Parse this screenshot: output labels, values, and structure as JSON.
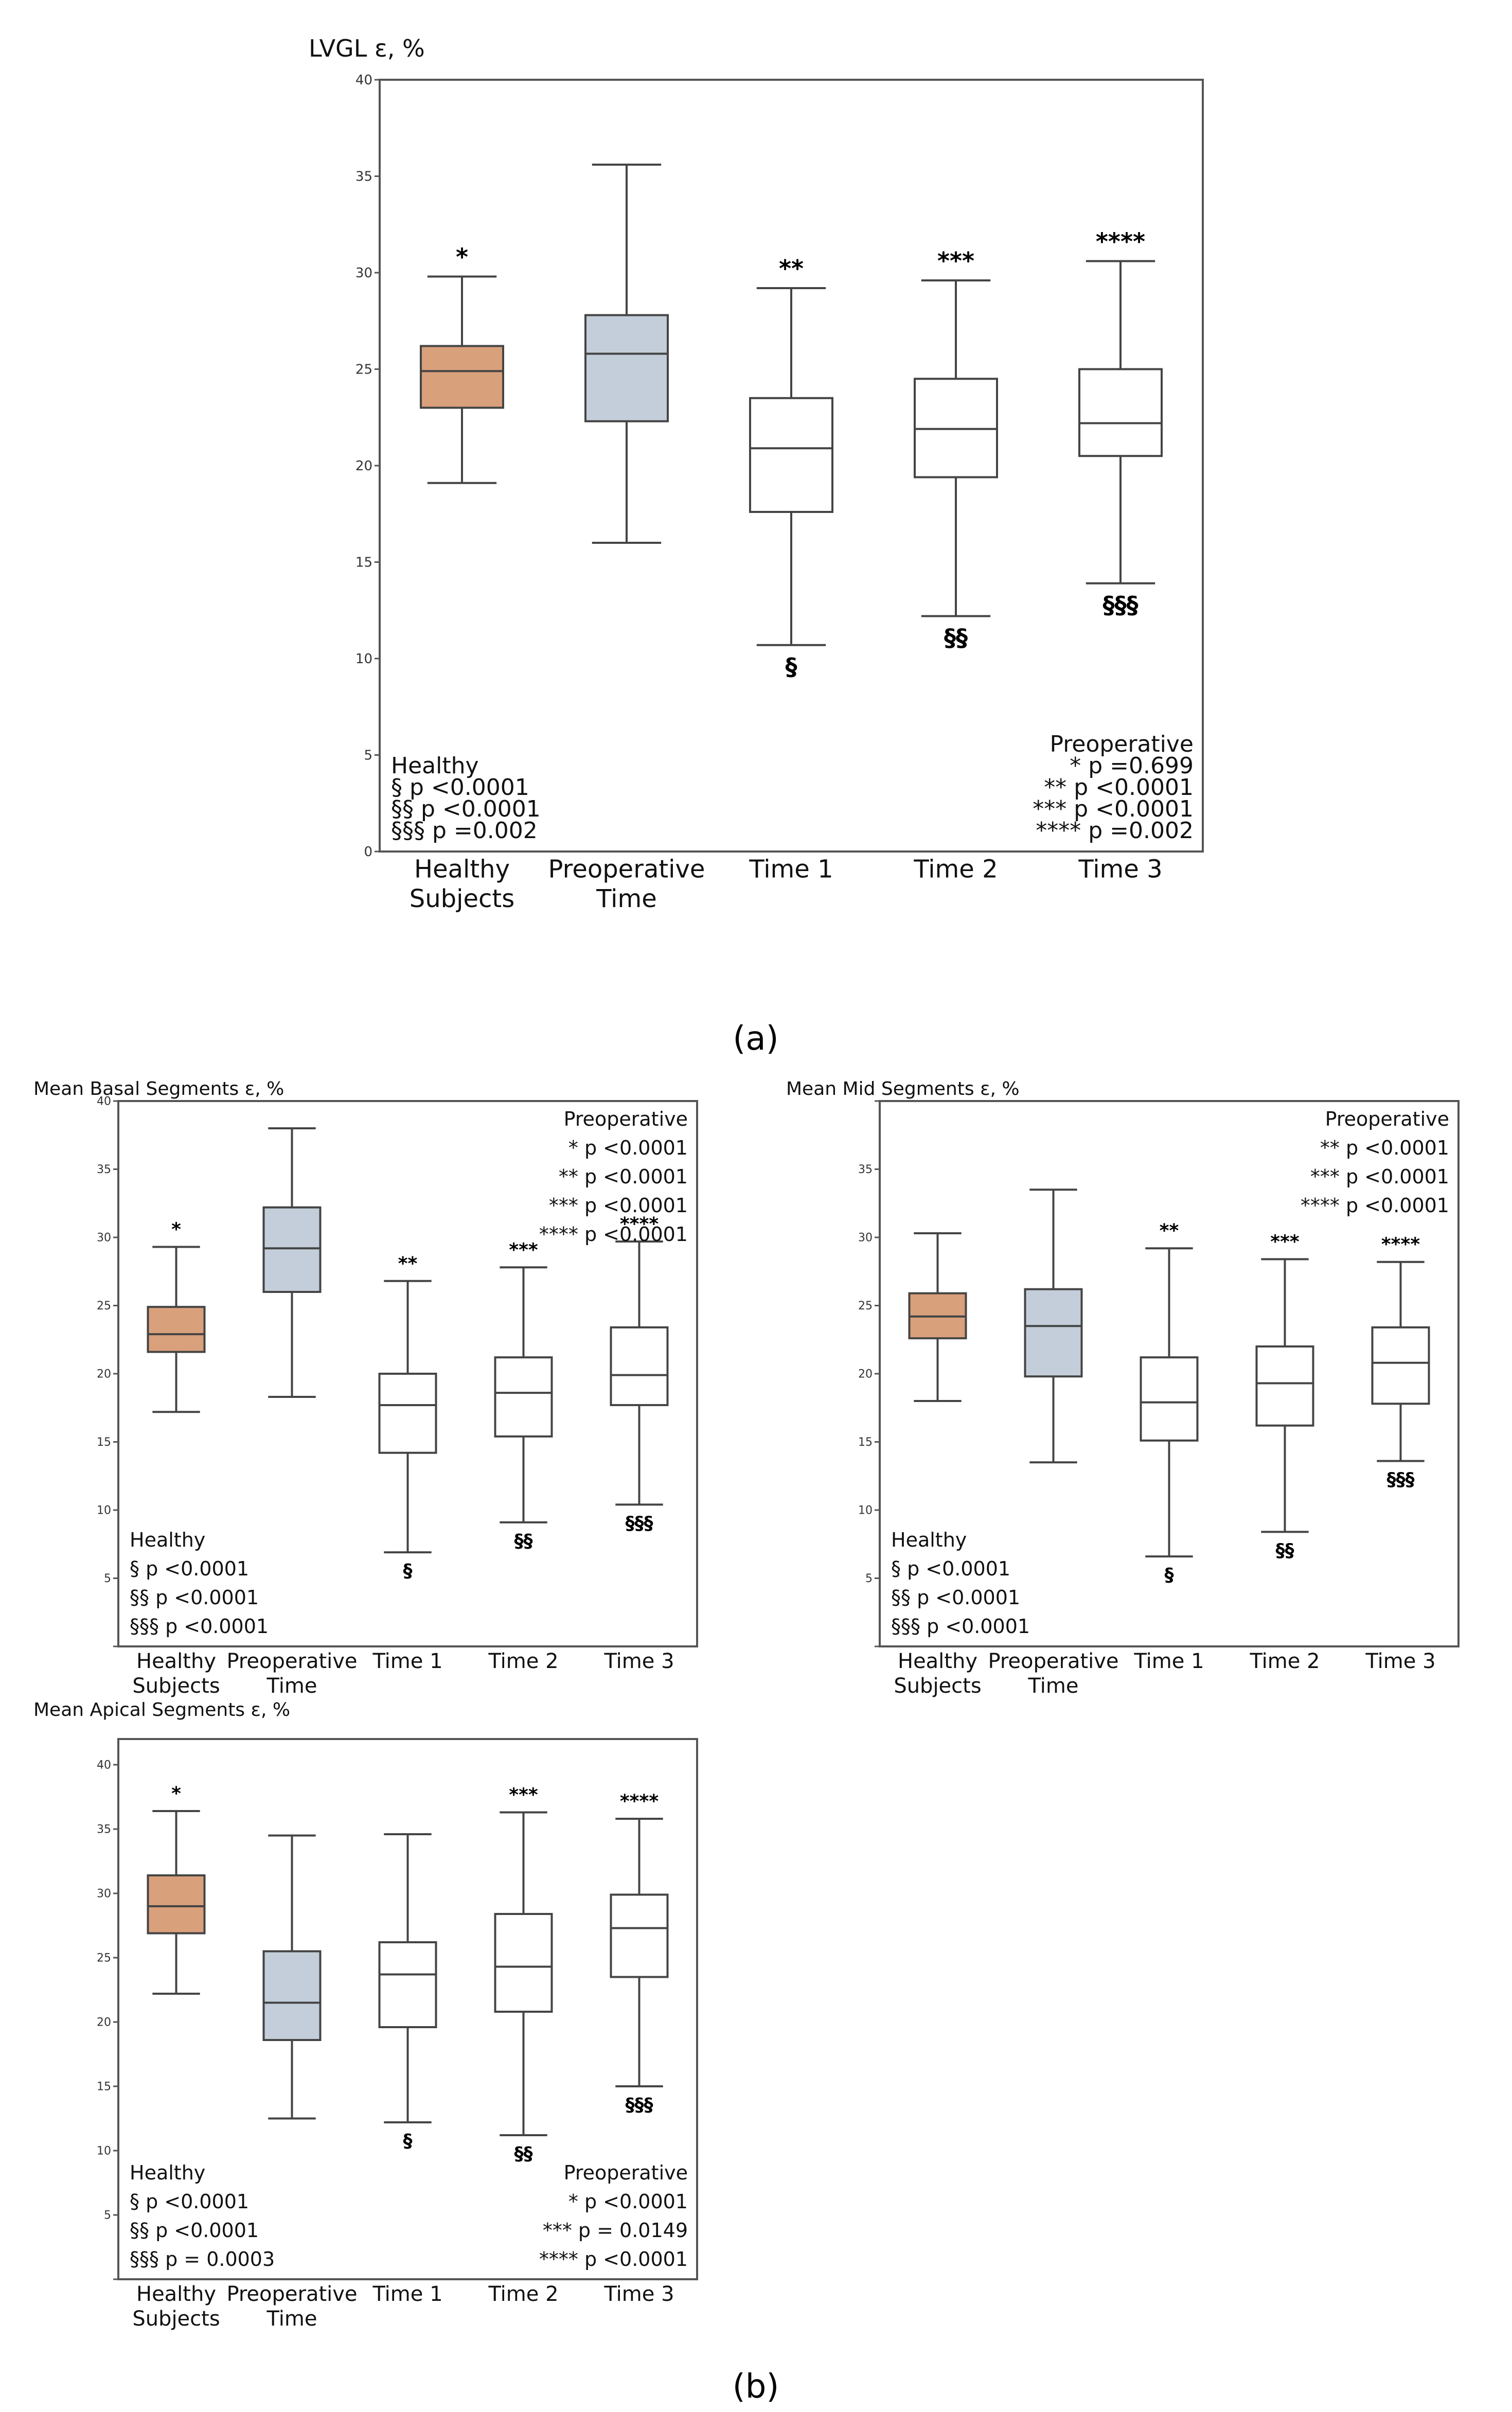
{
  "panel_labels": [
    "(a)",
    "(b)"
  ],
  "colors": {
    "healthy": "#D9A07C",
    "preoperative": "#C3CEDA",
    "postop": "#FFFFFF",
    "line": "#444444"
  },
  "chart_data": [
    {
      "id": "lvgl",
      "type": "box",
      "title": "LVGL ε, %",
      "ylim": [
        0,
        40
      ],
      "yticks": [
        "0",
        "5",
        "10",
        "15",
        "20",
        "25",
        "30",
        "35",
        "40"
      ],
      "categories": [
        [
          "Healthy",
          "Subjects"
        ],
        [
          "Preoperative",
          "Time"
        ],
        [
          "Time 1"
        ],
        [
          "Time 2"
        ],
        [
          "Time 3"
        ]
      ],
      "boxes": [
        {
          "min": 19.1,
          "q1": 23.0,
          "median": 24.9,
          "q3": 26.2,
          "max": 29.8,
          "top_mark": "*",
          "bottom_mark": ""
        },
        {
          "min": 16.0,
          "q1": 22.3,
          "median": 25.8,
          "q3": 27.8,
          "max": 35.6,
          "top_mark": "",
          "bottom_mark": ""
        },
        {
          "min": 10.7,
          "q1": 17.6,
          "median": 20.9,
          "q3": 23.5,
          "max": 29.2,
          "top_mark": "**",
          "bottom_mark": "§"
        },
        {
          "min": 12.2,
          "q1": 19.4,
          "median": 21.9,
          "q3": 24.5,
          "max": 29.6,
          "top_mark": "***",
          "bottom_mark": "§§"
        },
        {
          "min": 13.9,
          "q1": 20.5,
          "median": 22.2,
          "q3": 25.0,
          "max": 30.6,
          "top_mark": "****",
          "bottom_mark": "§§§"
        }
      ],
      "annotation_left": [
        "Healthy",
        "§ p <0.0001",
        "§§ p <0.0001",
        "§§§ p =0.002"
      ],
      "annotation_right": [
        "Preoperative",
        "* p =0.699",
        "** p <0.0001",
        "*** p <0.0001",
        "**** p =0.002"
      ]
    },
    {
      "id": "basal",
      "type": "box",
      "title": "Mean Basal Segments ε, %",
      "ylim": [
        0,
        40
      ],
      "yticks": [
        "",
        "5",
        "10",
        "15",
        "20",
        "25",
        "30",
        "35",
        "40"
      ],
      "categories": [
        [
          "Healthy",
          "Subjects"
        ],
        [
          "Preoperative",
          "Time"
        ],
        [
          "Time 1"
        ],
        [
          "Time 2"
        ],
        [
          "Time 3"
        ]
      ],
      "boxes": [
        {
          "min": 17.2,
          "q1": 21.6,
          "median": 22.9,
          "q3": 24.9,
          "max": 29.3,
          "top_mark": "*",
          "bottom_mark": ""
        },
        {
          "min": 18.3,
          "q1": 26.0,
          "median": 29.2,
          "q3": 32.2,
          "max": 38.0,
          "top_mark": "",
          "bottom_mark": ""
        },
        {
          "min": 6.9,
          "q1": 14.2,
          "median": 17.7,
          "q3": 20.0,
          "max": 26.8,
          "top_mark": "**",
          "bottom_mark": "§"
        },
        {
          "min": 9.1,
          "q1": 15.4,
          "median": 18.6,
          "q3": 21.2,
          "max": 27.8,
          "top_mark": "***",
          "bottom_mark": "§§"
        },
        {
          "min": 10.4,
          "q1": 17.7,
          "median": 19.9,
          "q3": 23.4,
          "max": 29.7,
          "top_mark": "****",
          "bottom_mark": "§§§"
        }
      ],
      "annotation_left": [
        "Healthy",
        "§ p <0.0001",
        "§§ p <0.0001",
        "§§§ p <0.0001"
      ],
      "annotation_right": [
        "Preoperative",
        "* p <0.0001",
        "** p <0.0001",
        "*** p <0.0001",
        "**** p <0.0001"
      ]
    },
    {
      "id": "mid",
      "type": "box",
      "title": "Mean Mid Segments ε, %",
      "ylim": [
        0,
        40
      ],
      "yticks": [
        "",
        "5",
        "10",
        "15",
        "20",
        "25",
        "30",
        "35",
        ""
      ],
      "categories": [
        [
          "Healthy",
          "Subjects"
        ],
        [
          "Preoperative",
          "Time"
        ],
        [
          "Time 1"
        ],
        [
          "Time 2"
        ],
        [
          "Time 3"
        ]
      ],
      "boxes": [
        {
          "min": 18.0,
          "q1": 22.6,
          "median": 24.2,
          "q3": 25.9,
          "max": 30.3,
          "top_mark": "",
          "bottom_mark": ""
        },
        {
          "min": 13.5,
          "q1": 19.8,
          "median": 23.5,
          "q3": 26.2,
          "max": 33.5,
          "top_mark": "",
          "bottom_mark": ""
        },
        {
          "min": 6.6,
          "q1": 15.1,
          "median": 17.9,
          "q3": 21.2,
          "max": 29.2,
          "top_mark": "**",
          "bottom_mark": "§"
        },
        {
          "min": 8.4,
          "q1": 16.2,
          "median": 19.3,
          "q3": 22.0,
          "max": 28.4,
          "top_mark": "***",
          "bottom_mark": "§§"
        },
        {
          "min": 13.6,
          "q1": 17.8,
          "median": 20.8,
          "q3": 23.4,
          "max": 28.2,
          "top_mark": "****",
          "bottom_mark": "§§§"
        }
      ],
      "annotation_left": [
        "Healthy",
        "§ p <0.0001",
        "§§ p <0.0001",
        "§§§ p <0.0001"
      ],
      "annotation_right": [
        "Preoperative",
        "** p <0.0001",
        "*** p <0.0001",
        "**** p <0.0001"
      ]
    },
    {
      "id": "apical",
      "type": "box",
      "title": "Mean Apical Segments ε, %",
      "ylim": [
        0,
        42
      ],
      "yticks": [
        "",
        "5",
        "10",
        "15",
        "20",
        "25",
        "30",
        "35",
        "40"
      ],
      "categories": [
        [
          "Healthy",
          "Subjects"
        ],
        [
          "Preoperative",
          "Time"
        ],
        [
          "Time 1"
        ],
        [
          "Time 2"
        ],
        [
          "Time 3"
        ]
      ],
      "boxes": [
        {
          "min": 22.2,
          "q1": 26.9,
          "median": 29.0,
          "q3": 31.4,
          "max": 36.4,
          "top_mark": "*",
          "bottom_mark": ""
        },
        {
          "min": 12.5,
          "q1": 18.6,
          "median": 21.5,
          "q3": 25.5,
          "max": 34.5,
          "top_mark": "",
          "bottom_mark": ""
        },
        {
          "min": 12.2,
          "q1": 19.6,
          "median": 23.7,
          "q3": 26.2,
          "max": 34.6,
          "top_mark": "",
          "bottom_mark": "§"
        },
        {
          "min": 11.2,
          "q1": 20.8,
          "median": 24.3,
          "q3": 28.4,
          "max": 36.3,
          "top_mark": "***",
          "bottom_mark": "§§"
        },
        {
          "min": 15.0,
          "q1": 23.5,
          "median": 27.3,
          "q3": 29.9,
          "max": 35.8,
          "top_mark": "****",
          "bottom_mark": "§§§"
        }
      ],
      "annotation_left": [
        "Healthy",
        "§ p <0.0001",
        "§§ p <0.0001",
        "§§§ p = 0.0003"
      ],
      "annotation_right": [
        "Preoperative",
        "* p <0.0001",
        "*** p = 0.0149",
        "**** p <0.0001"
      ]
    }
  ]
}
